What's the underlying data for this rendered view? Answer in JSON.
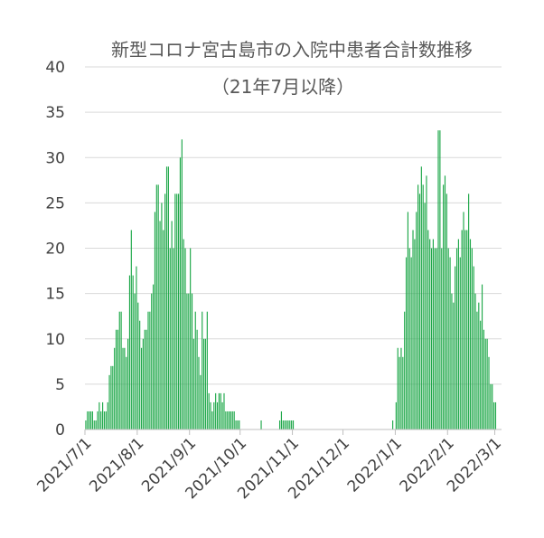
{
  "chart_data": {
    "type": "bar",
    "title": "新型コロナ宮古島市の入院中患者合計数推移",
    "subtitle": "（21年7月以降）",
    "xlabel": "",
    "ylabel": "",
    "ylim": [
      0,
      40
    ],
    "yticks": [
      "0",
      "5",
      "10",
      "15",
      "20",
      "25",
      "30",
      "35",
      "40"
    ],
    "grid": true,
    "legend": "none",
    "bar_color": "#1fa84a",
    "x_tick_labels": [
      "2021/7/1",
      "2021/8/1",
      "2021/9/1",
      "2021/10/1",
      "2021/11/1",
      "2021/12/1",
      "2022/1/1",
      "2022/2/1",
      "2022/3/1"
    ],
    "x_tick_dates": [
      "2021-07-01",
      "2021-08-01",
      "2021-09-01",
      "2021-10-01",
      "2021-11-01",
      "2021-12-01",
      "2022-01-01",
      "2022-02-01",
      "2022-03-01"
    ],
    "x_range": [
      "2021-07-01",
      "2022-03-05"
    ],
    "series": [
      {
        "values": [
          {
            "date": "2021-07-01",
            "value": 1
          },
          {
            "date": "2021-07-02",
            "value": 2
          },
          {
            "date": "2021-07-03",
            "value": 2
          },
          {
            "date": "2021-07-04",
            "value": 2
          },
          {
            "date": "2021-07-05",
            "value": 2
          },
          {
            "date": "2021-07-06",
            "value": 1
          },
          {
            "date": "2021-07-07",
            "value": 1
          },
          {
            "date": "2021-07-08",
            "value": 2
          },
          {
            "date": "2021-07-09",
            "value": 3
          },
          {
            "date": "2021-07-10",
            "value": 2
          },
          {
            "date": "2021-07-11",
            "value": 3
          },
          {
            "date": "2021-07-12",
            "value": 2
          },
          {
            "date": "2021-07-13",
            "value": 2
          },
          {
            "date": "2021-07-14",
            "value": 3
          },
          {
            "date": "2021-07-15",
            "value": 6
          },
          {
            "date": "2021-07-16",
            "value": 7
          },
          {
            "date": "2021-07-17",
            "value": 7
          },
          {
            "date": "2021-07-18",
            "value": 9
          },
          {
            "date": "2021-07-19",
            "value": 11
          },
          {
            "date": "2021-07-20",
            "value": 11
          },
          {
            "date": "2021-07-21",
            "value": 13
          },
          {
            "date": "2021-07-22",
            "value": 13
          },
          {
            "date": "2021-07-23",
            "value": 9
          },
          {
            "date": "2021-07-24",
            "value": 9
          },
          {
            "date": "2021-07-25",
            "value": 8
          },
          {
            "date": "2021-07-26",
            "value": 10
          },
          {
            "date": "2021-07-27",
            "value": 17
          },
          {
            "date": "2021-07-28",
            "value": 22
          },
          {
            "date": "2021-07-29",
            "value": 17
          },
          {
            "date": "2021-07-30",
            "value": 15
          },
          {
            "date": "2021-07-31",
            "value": 18
          },
          {
            "date": "2021-08-01",
            "value": 14
          },
          {
            "date": "2021-08-02",
            "value": 12
          },
          {
            "date": "2021-08-03",
            "value": 9
          },
          {
            "date": "2021-08-04",
            "value": 10
          },
          {
            "date": "2021-08-05",
            "value": 11
          },
          {
            "date": "2021-08-06",
            "value": 11
          },
          {
            "date": "2021-08-07",
            "value": 13
          },
          {
            "date": "2021-08-08",
            "value": 13
          },
          {
            "date": "2021-08-09",
            "value": 15
          },
          {
            "date": "2021-08-10",
            "value": 16
          },
          {
            "date": "2021-08-11",
            "value": 24
          },
          {
            "date": "2021-08-12",
            "value": 27
          },
          {
            "date": "2021-08-13",
            "value": 27
          },
          {
            "date": "2021-08-14",
            "value": 23
          },
          {
            "date": "2021-08-15",
            "value": 25
          },
          {
            "date": "2021-08-16",
            "value": 22
          },
          {
            "date": "2021-08-17",
            "value": 26
          },
          {
            "date": "2021-08-18",
            "value": 29
          },
          {
            "date": "2021-08-19",
            "value": 29
          },
          {
            "date": "2021-08-20",
            "value": 20
          },
          {
            "date": "2021-08-21",
            "value": 23
          },
          {
            "date": "2021-08-22",
            "value": 20
          },
          {
            "date": "2021-08-23",
            "value": 26
          },
          {
            "date": "2021-08-24",
            "value": 26
          },
          {
            "date": "2021-08-25",
            "value": 26
          },
          {
            "date": "2021-08-26",
            "value": 30
          },
          {
            "date": "2021-08-27",
            "value": 32
          },
          {
            "date": "2021-08-28",
            "value": 21
          },
          {
            "date": "2021-08-29",
            "value": 20
          },
          {
            "date": "2021-08-30",
            "value": 15
          },
          {
            "date": "2021-08-31",
            "value": 15
          },
          {
            "date": "2021-09-01",
            "value": 20
          },
          {
            "date": "2021-09-02",
            "value": 15
          },
          {
            "date": "2021-09-03",
            "value": 10
          },
          {
            "date": "2021-09-04",
            "value": 13
          },
          {
            "date": "2021-09-05",
            "value": 11
          },
          {
            "date": "2021-09-06",
            "value": 8
          },
          {
            "date": "2021-09-07",
            "value": 6
          },
          {
            "date": "2021-09-08",
            "value": 13
          },
          {
            "date": "2021-09-09",
            "value": 10
          },
          {
            "date": "2021-09-10",
            "value": 10
          },
          {
            "date": "2021-09-11",
            "value": 13
          },
          {
            "date": "2021-09-12",
            "value": 4
          },
          {
            "date": "2021-09-13",
            "value": 3
          },
          {
            "date": "2021-09-14",
            "value": 2
          },
          {
            "date": "2021-09-15",
            "value": 3
          },
          {
            "date": "2021-09-16",
            "value": 4
          },
          {
            "date": "2021-09-17",
            "value": 3
          },
          {
            "date": "2021-09-18",
            "value": 4
          },
          {
            "date": "2021-09-19",
            "value": 4
          },
          {
            "date": "2021-09-20",
            "value": 3
          },
          {
            "date": "2021-09-21",
            "value": 4
          },
          {
            "date": "2021-09-22",
            "value": 2
          },
          {
            "date": "2021-09-23",
            "value": 2
          },
          {
            "date": "2021-09-24",
            "value": 2
          },
          {
            "date": "2021-09-25",
            "value": 2
          },
          {
            "date": "2021-09-26",
            "value": 2
          },
          {
            "date": "2021-09-27",
            "value": 2
          },
          {
            "date": "2021-09-28",
            "value": 1
          },
          {
            "date": "2021-09-29",
            "value": 1
          },
          {
            "date": "2021-09-30",
            "value": 1
          },
          {
            "date": "2021-10-13",
            "value": 1
          },
          {
            "date": "2021-10-24",
            "value": 1
          },
          {
            "date": "2021-10-25",
            "value": 2
          },
          {
            "date": "2021-10-26",
            "value": 1
          },
          {
            "date": "2021-10-27",
            "value": 1
          },
          {
            "date": "2021-10-28",
            "value": 1
          },
          {
            "date": "2021-10-29",
            "value": 1
          },
          {
            "date": "2021-10-30",
            "value": 1
          },
          {
            "date": "2021-10-31",
            "value": 1
          },
          {
            "date": "2021-11-01",
            "value": 1
          },
          {
            "date": "2021-12-30",
            "value": 1
          },
          {
            "date": "2022-01-01",
            "value": 3
          },
          {
            "date": "2022-01-02",
            "value": 9
          },
          {
            "date": "2022-01-03",
            "value": 8
          },
          {
            "date": "2022-01-04",
            "value": 9
          },
          {
            "date": "2022-01-05",
            "value": 8
          },
          {
            "date": "2022-01-06",
            "value": 13
          },
          {
            "date": "2022-01-07",
            "value": 19
          },
          {
            "date": "2022-01-08",
            "value": 24
          },
          {
            "date": "2022-01-09",
            "value": 20
          },
          {
            "date": "2022-01-10",
            "value": 19
          },
          {
            "date": "2022-01-11",
            "value": 22
          },
          {
            "date": "2022-01-12",
            "value": 21
          },
          {
            "date": "2022-01-13",
            "value": 24
          },
          {
            "date": "2022-01-14",
            "value": 27
          },
          {
            "date": "2022-01-15",
            "value": 26
          },
          {
            "date": "2022-01-16",
            "value": 29
          },
          {
            "date": "2022-01-17",
            "value": 27
          },
          {
            "date": "2022-01-18",
            "value": 25
          },
          {
            "date": "2022-01-19",
            "value": 28
          },
          {
            "date": "2022-01-20",
            "value": 22
          },
          {
            "date": "2022-01-21",
            "value": 21
          },
          {
            "date": "2022-01-22",
            "value": 20
          },
          {
            "date": "2022-01-23",
            "value": 21
          },
          {
            "date": "2022-01-24",
            "value": 20
          },
          {
            "date": "2022-01-25",
            "value": 20
          },
          {
            "date": "2022-01-26",
            "value": 33
          },
          {
            "date": "2022-01-27",
            "value": 33
          },
          {
            "date": "2022-01-28",
            "value": 20
          },
          {
            "date": "2022-01-29",
            "value": 27
          },
          {
            "date": "2022-01-30",
            "value": 28
          },
          {
            "date": "2022-01-31",
            "value": 26
          },
          {
            "date": "2022-02-01",
            "value": 20
          },
          {
            "date": "2022-02-02",
            "value": 19
          },
          {
            "date": "2022-02-03",
            "value": 15
          },
          {
            "date": "2022-02-04",
            "value": 14
          },
          {
            "date": "2022-02-05",
            "value": 18
          },
          {
            "date": "2022-02-06",
            "value": 20
          },
          {
            "date": "2022-02-07",
            "value": 21
          },
          {
            "date": "2022-02-08",
            "value": 19
          },
          {
            "date": "2022-02-09",
            "value": 22
          },
          {
            "date": "2022-02-10",
            "value": 24
          },
          {
            "date": "2022-02-11",
            "value": 22
          },
          {
            "date": "2022-02-12",
            "value": 22
          },
          {
            "date": "2022-02-13",
            "value": 26
          },
          {
            "date": "2022-02-14",
            "value": 21
          },
          {
            "date": "2022-02-15",
            "value": 20
          },
          {
            "date": "2022-02-16",
            "value": 18
          },
          {
            "date": "2022-02-17",
            "value": 15
          },
          {
            "date": "2022-02-18",
            "value": 13
          },
          {
            "date": "2022-02-19",
            "value": 14
          },
          {
            "date": "2022-02-20",
            "value": 12
          },
          {
            "date": "2022-02-21",
            "value": 16
          },
          {
            "date": "2022-02-22",
            "value": 11
          },
          {
            "date": "2022-02-23",
            "value": 10
          },
          {
            "date": "2022-02-24",
            "value": 10
          },
          {
            "date": "2022-02-25",
            "value": 8
          },
          {
            "date": "2022-02-26",
            "value": 5
          },
          {
            "date": "2022-02-27",
            "value": 5
          },
          {
            "date": "2022-02-28",
            "value": 3
          },
          {
            "date": "2022-03-01",
            "value": 3
          }
        ]
      }
    ]
  }
}
